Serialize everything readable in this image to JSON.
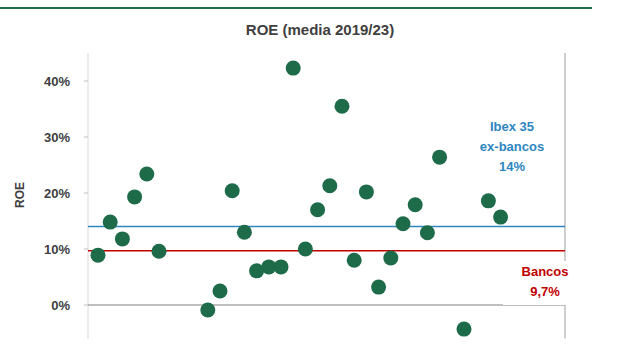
{
  "chart_data": {
    "type": "scatter",
    "title": "ROE (media 2019/23)",
    "y_label": "ROE",
    "categories": [
      null,
      null,
      null,
      null,
      null,
      null,
      null,
      null,
      null,
      null,
      null,
      null,
      null,
      null,
      null,
      null,
      null,
      null,
      null,
      null,
      null,
      null,
      null,
      null,
      null,
      null,
      null,
      null,
      null,
      null,
      null,
      null,
      null,
      null
    ],
    "values": [
      8.9,
      14.8,
      11.8,
      19.3,
      23.4,
      9.6,
      null,
      null,
      null,
      -0.9,
      2.5,
      20.4,
      13.0,
      6.1,
      6.8,
      6.8,
      42.3,
      10.0,
      17.0,
      21.3,
      35.5,
      8.0,
      20.2,
      3.2,
      8.4,
      14.5,
      17.9,
      12.9,
      26.4,
      null,
      -4.3,
      null,
      18.6,
      15.7
    ],
    "color": "#1e6b4a",
    "marker": "circle",
    "ylim": [
      -6,
      45
    ],
    "yticks": [
      {
        "value": 0,
        "label": "0%"
      },
      {
        "value": 10,
        "label": "10%"
      },
      {
        "value": 20,
        "label": "20%"
      },
      {
        "value": 30,
        "label": "30%"
      },
      {
        "value": 40,
        "label": "40%"
      }
    ],
    "tick_labels": "y",
    "grid": false,
    "reference_lines": [
      {
        "value": 14,
        "label": [
          "Ibex 35",
          "ex-bancos",
          "14%"
        ],
        "color": "#2e86c1"
      },
      {
        "value": 9.7,
        "label": [
          "Bancos",
          "9,7%"
        ],
        "color": "#c00000"
      }
    ]
  }
}
